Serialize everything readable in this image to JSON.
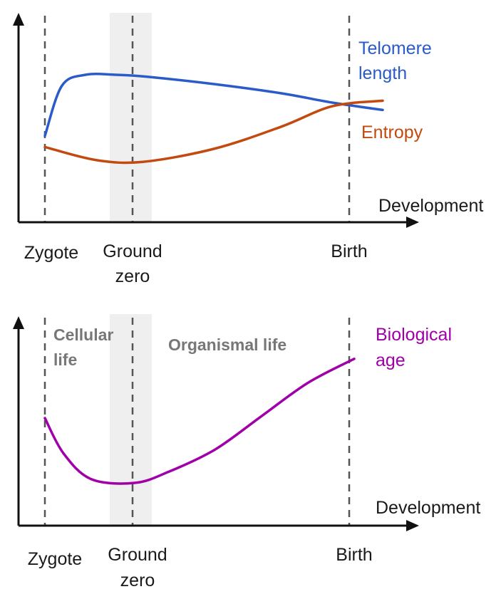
{
  "colors": {
    "telomere": "#2a5bc8",
    "entropy": "#c24a0e",
    "biological_age": "#a000a8",
    "ground_zero_band": "#efefef",
    "phase_text": "#777777"
  },
  "chart_data": [
    {
      "type": "line",
      "xlabel": "Development",
      "ylabel": "",
      "x_landmarks": [
        "Zygote",
        "Ground zero",
        "Birth"
      ],
      "highlight_band": "Ground zero",
      "xlim": [
        0,
        10
      ],
      "ylim": [
        0,
        10
      ],
      "series": [
        {
          "name": "Telomere length",
          "color": "#2a5bc8",
          "x": [
            0,
            0.5,
            1.2,
            2.1,
            3,
            5,
            7,
            8.5,
            10
          ],
          "y": [
            4.2,
            6.9,
            7.5,
            7.5,
            7.4,
            7.0,
            6.5,
            6.0,
            5.6
          ]
        },
        {
          "name": "Entropy",
          "color": "#c24a0e",
          "x": [
            0,
            1.5,
            2.9,
            5,
            7,
            8.5,
            10
          ],
          "y": [
            3.6,
            2.9,
            2.8,
            3.5,
            4.7,
            5.8,
            6.1
          ]
        }
      ]
    },
    {
      "type": "line",
      "xlabel": "Development",
      "ylabel": "",
      "x_landmarks": [
        "Zygote",
        "Ground zero",
        "Birth"
      ],
      "highlight_band": "Ground zero",
      "phases": [
        "Cellular life",
        "Organismal life"
      ],
      "xlim": [
        0,
        10
      ],
      "ylim": [
        0,
        10
      ],
      "series": [
        {
          "name": "Biological age",
          "color": "#a000a8",
          "x": [
            0,
            0.6,
            1.5,
            2.9,
            4,
            5.5,
            7,
            8.5,
            10
          ],
          "y": [
            5.5,
            3.6,
            2.2,
            2.0,
            2.6,
            3.8,
            5.6,
            7.4,
            8.7
          ]
        }
      ]
    }
  ],
  "top": {
    "xlabel": "Development",
    "labels": {
      "zygote": "Zygote",
      "ground_zero_line1": "Ground",
      "ground_zero_line2": "zero",
      "birth": "Birth"
    },
    "telomere_label_line1": "Telomere",
    "telomere_label_line2": "length",
    "entropy_label": "Entropy"
  },
  "bottom": {
    "xlabel": "Development",
    "labels": {
      "zygote": "Zygote",
      "ground_zero_line1": "Ground",
      "ground_zero_line2": "zero",
      "birth": "Birth"
    },
    "cellular_line1": "Cellular",
    "cellular_line2": "life",
    "organismal": "Organismal life",
    "biological_label_line1": "Biological",
    "biological_label_line2": "age"
  }
}
